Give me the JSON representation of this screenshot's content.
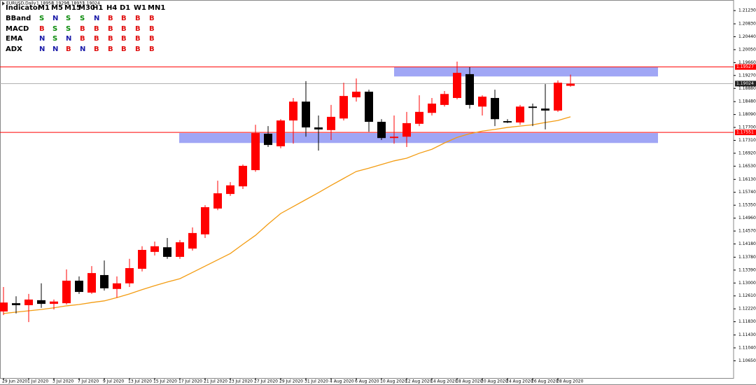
{
  "chart_data": {
    "type": "candlestick",
    "symbol": "EURUSD,Daily",
    "ohlc": [
      1.18958,
      1.19296,
      1.18931,
      1.19024
    ],
    "categories": [
      "29 Jun 2020",
      null,
      "1 Jul 2020",
      null,
      "3 Jul 2020",
      null,
      "7 Jul 2020",
      null,
      "9 Jul 2020",
      null,
      "13 Jul 2020",
      null,
      "15 Jul 2020",
      null,
      "17 Jul 2020",
      null,
      "21 Jul 2020",
      null,
      "23 Jul 2020",
      null,
      "27 Jul 2020",
      null,
      "29 Jul 2020",
      null,
      "31 Jul 2020",
      null,
      "4 Aug 2020",
      null,
      "6 Aug 2020",
      null,
      "10 Aug 2020",
      null,
      "12 Aug 2020",
      null,
      "14 Aug 2020",
      null,
      "18 Aug 2020",
      null,
      "20 Aug 2020",
      null,
      "24 Aug 2020",
      null,
      "26 Aug 2020",
      null,
      "28 Aug 2020",
      null
    ],
    "open": [
      1.1214,
      1.1239,
      1.1233,
      1.1248,
      1.1237,
      1.1239,
      1.1307,
      1.1271,
      1.1324,
      1.1282,
      1.1299,
      1.1343,
      1.1394,
      1.1408,
      1.1379,
      1.1404,
      1.1447,
      1.1525,
      1.1569,
      1.1592,
      1.1641,
      1.1751,
      1.1713,
      1.1791,
      1.1848,
      1.177,
      1.1762,
      1.1797,
      1.1861,
      1.1878,
      1.1787,
      1.1738,
      1.1742,
      1.1781,
      1.1814,
      1.1838,
      1.1859,
      1.1931,
      1.1833,
      1.1859,
      1.1789,
      1.1785,
      1.1833,
      1.1827,
      1.1821,
      1.18958
    ],
    "high": [
      1.1288,
      1.126,
      1.1267,
      1.1299,
      1.125,
      1.1341,
      1.132,
      1.1351,
      1.1368,
      1.132,
      1.1373,
      1.1411,
      1.1425,
      1.1436,
      1.143,
      1.1468,
      1.1535,
      1.1609,
      1.1605,
      1.1658,
      1.1778,
      1.1774,
      1.1795,
      1.1859,
      1.191,
      1.1806,
      1.1838,
      1.1905,
      1.1918,
      1.1884,
      1.1795,
      1.1806,
      1.1817,
      1.1867,
      1.1859,
      1.188,
      1.1969,
      1.1952,
      1.1867,
      1.1884,
      1.1795,
      1.1838,
      1.1842,
      1.1901,
      1.1912,
      1.19296
    ],
    "low": [
      1.1203,
      1.1208,
      1.1182,
      1.1225,
      1.122,
      1.1235,
      1.1267,
      1.1267,
      1.1277,
      1.1256,
      1.1288,
      1.1335,
      1.1383,
      1.1373,
      1.1373,
      1.1398,
      1.1436,
      1.152,
      1.1563,
      1.1584,
      1.1636,
      1.1711,
      1.1707,
      1.1721,
      1.1742,
      1.17,
      1.1732,
      1.1791,
      1.1848,
      1.1757,
      1.1732,
      1.1721,
      1.1711,
      1.1774,
      1.1806,
      1.1833,
      1.1855,
      1.1827,
      1.1806,
      1.1774,
      1.1783,
      1.1778,
      1.1774,
      1.1764,
      1.1817,
      1.18931
    ],
    "close": [
      1.1241,
      1.1233,
      1.125,
      1.1237,
      1.1244,
      1.1307,
      1.1273,
      1.133,
      1.1284,
      1.1299,
      1.1345,
      1.14,
      1.1411,
      1.1379,
      1.1423,
      1.1451,
      1.1529,
      1.1571,
      1.1595,
      1.1654,
      1.1753,
      1.1717,
      1.1791,
      1.1848,
      1.177,
      1.1764,
      1.1802,
      1.1865,
      1.1878,
      1.1787,
      1.1738,
      1.1742,
      1.1783,
      1.1817,
      1.1842,
      1.1871,
      1.1935,
      1.1838,
      1.1863,
      1.1795,
      1.1785,
      1.1833,
      1.1829,
      1.1821,
      1.1905,
      1.19024
    ],
    "up_color": "#ff0000",
    "down_color": "#000000",
    "ma": {
      "color": "#f39c12",
      "values": [
        1.1208,
        1.1212,
        1.1216,
        1.122,
        1.1225,
        1.1231,
        1.1235,
        1.1241,
        1.1246,
        1.1256,
        1.1267,
        1.128,
        1.1292,
        1.1303,
        1.1313,
        1.1332,
        1.1351,
        1.137,
        1.1389,
        1.1417,
        1.1444,
        1.1478,
        1.151,
        1.1531,
        1.1552,
        1.1573,
        1.1595,
        1.1616,
        1.1637,
        1.1647,
        1.1658,
        1.1669,
        1.1677,
        1.1692,
        1.1704,
        1.1723,
        1.174,
        1.1751,
        1.1759,
        1.1764,
        1.177,
        1.1774,
        1.1778,
        1.1785,
        1.1791,
        1.1802
      ]
    },
    "zones": [
      {
        "low": 1.1924,
        "high": 1.1952,
        "color": "#a0a6f5"
      },
      {
        "low": 1.1723,
        "high": 1.1753,
        "color": "#a0a6f5"
      }
    ],
    "price_lines": [
      {
        "value": 1.19527,
        "color": "#ff0000"
      },
      {
        "value": 1.17551,
        "color": "#ff0000"
      },
      {
        "value": 1.19024,
        "color": "#b0b0b0"
      }
    ],
    "ylim": [
      1.1013,
      1.2155
    ],
    "yticks": [
      {
        "value": 1.2123,
        "label": "1.21230"
      },
      {
        "value": 1.2083,
        "label": "1.20830"
      },
      {
        "value": 1.2044,
        "label": "1.20440"
      },
      {
        "value": 1.2005,
        "label": "1.20050"
      },
      {
        "value": 1.1966,
        "label": "1.19660"
      },
      {
        "value": 1.1927,
        "label": "1.19270"
      },
      {
        "value": 1.1888,
        "label": "1.18880"
      },
      {
        "value": 1.1848,
        "label": "1.18480"
      },
      {
        "value": 1.1809,
        "label": "1.18090"
      },
      {
        "value": 1.177,
        "label": "1.17700"
      },
      {
        "value": 1.1731,
        "label": "1.17310"
      },
      {
        "value": 1.1692,
        "label": "1.16920"
      },
      {
        "value": 1.1653,
        "label": "1.16530"
      },
      {
        "value": 1.1613,
        "label": "1.16130"
      },
      {
        "value": 1.1574,
        "label": "1.15740"
      },
      {
        "value": 1.1535,
        "label": "1.15350"
      },
      {
        "value": 1.1496,
        "label": "1.14960"
      },
      {
        "value": 1.1457,
        "label": "1.14570"
      },
      {
        "value": 1.1418,
        "label": "1.14180"
      },
      {
        "value": 1.1378,
        "label": "1.13780"
      },
      {
        "value": 1.1339,
        "label": "1.13390"
      },
      {
        "value": 1.13,
        "label": "1.13000"
      },
      {
        "value": 1.1261,
        "label": "1.12610"
      },
      {
        "value": 1.1222,
        "label": "1.12220"
      },
      {
        "value": 1.1183,
        "label": "1.11830"
      },
      {
        "value": 1.1143,
        "label": "1.11430"
      },
      {
        "value": 1.1104,
        "label": "1.11040"
      },
      {
        "value": 1.1065,
        "label": "1.10650"
      }
    ]
  },
  "indicator_table": {
    "header": [
      "Indicator",
      "M1",
      "M5",
      "M15",
      "M30",
      "H1",
      "H4",
      "D1",
      "W1",
      "MN1"
    ],
    "rows": [
      [
        "BBand",
        "S",
        "N",
        "S",
        "S",
        "N",
        "B",
        "B",
        "B",
        "B"
      ],
      [
        "MACD",
        "B",
        "S",
        "S",
        "B",
        "B",
        "B",
        "B",
        "B",
        "B"
      ],
      [
        "EMA",
        "N",
        "S",
        "N",
        "B",
        "B",
        "B",
        "B",
        "B",
        "B"
      ],
      [
        "ADX",
        "N",
        "N",
        "B",
        "N",
        "B",
        "B",
        "B",
        "B",
        "B"
      ]
    ],
    "signal_colors": {
      "S": "#0a8a0a",
      "N": "#1a1aa8",
      "B": "#e01010"
    }
  }
}
